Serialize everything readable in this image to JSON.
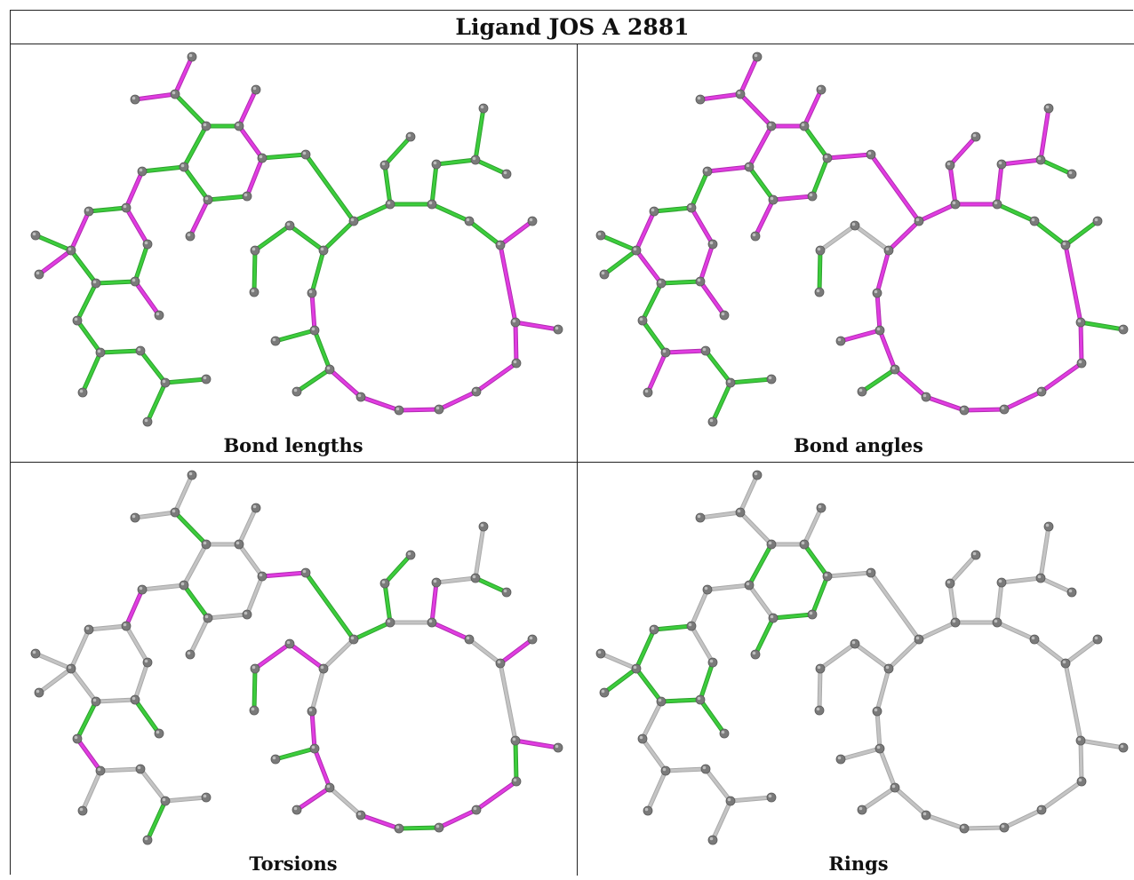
{
  "title": "Ligand JOS A 2881",
  "colors": {
    "green": "#3ccd3c",
    "magenta": "#e13ce1",
    "grey": "#c4c4c4",
    "atom": "#7a7a7a"
  },
  "panels": [
    {
      "caption": "Bond lengths"
    },
    {
      "caption": "Bond angles"
    },
    {
      "caption": "Torsions"
    },
    {
      "caption": "Rings"
    }
  ]
}
